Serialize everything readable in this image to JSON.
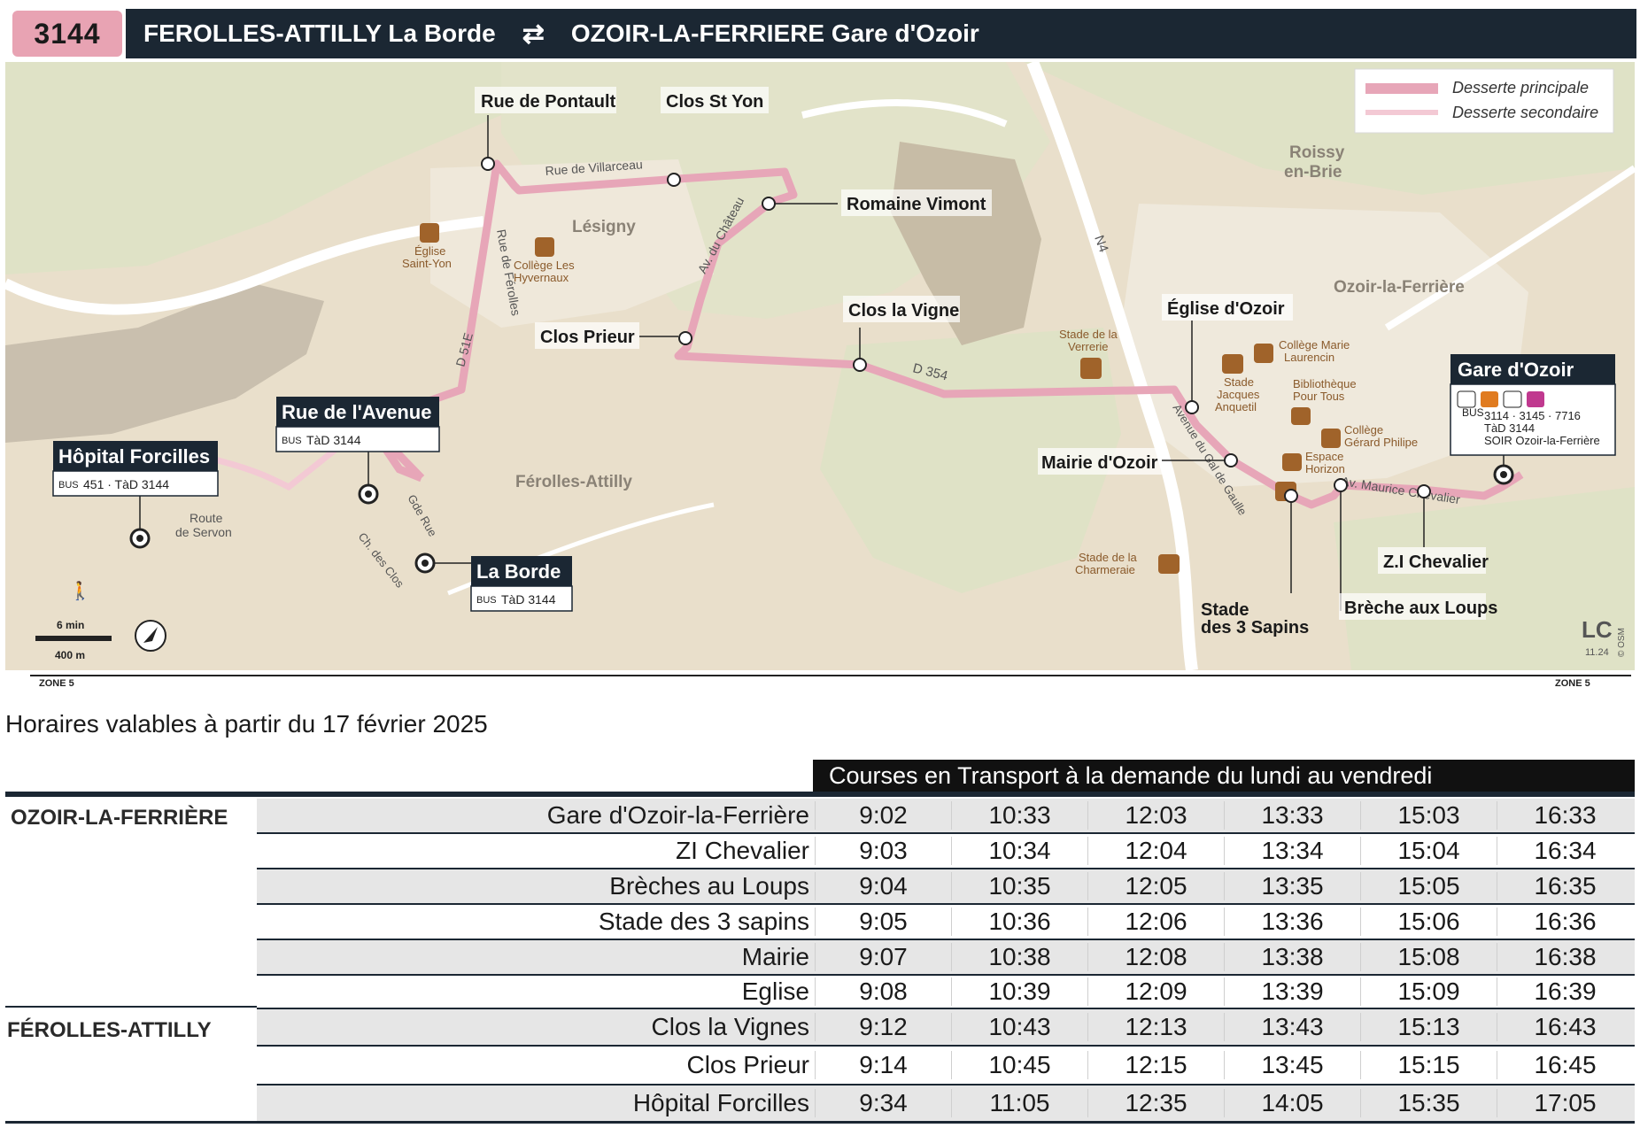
{
  "header": {
    "line_number": "3144",
    "from": "FEROLLES-ATTILLY La Borde",
    "arrows": "⇄",
    "to": "OZOIR-LA-FERRIERE Gare d'Ozoir"
  },
  "legend": {
    "primary": "Desserte principale",
    "secondary": "Desserte secondaire"
  },
  "colors": {
    "route_main": "#e7a6b8",
    "route_secondary": "#f3c9d4",
    "header_bg": "#1b2733",
    "badge": "#e8a3b3",
    "map_bg": "#e9dfcb",
    "green": "#dfe2c6",
    "urban": "#c9bfae",
    "road": "#ffffff"
  },
  "stops": {
    "rue_de_pontault": "Rue de Pontault",
    "clos_st_yon": "Clos St Yon",
    "romaine_vimont": "Romaine Vimont",
    "clos_la_vigne": "Clos la Vigne",
    "clos_prieur": "Clos Prieur",
    "rue_de_lavenue": "Rue de l'Avenue",
    "rue_de_lavenue_lines": "TàD 3144",
    "hopital_forcilles": "Hôpital Forcilles",
    "hopital_forcilles_lines": "451 · TàD 3144",
    "la_borde": "La Borde",
    "la_borde_lines": "TàD 3144",
    "eglise_dozoir": "Église d'Ozoir",
    "mairie_dozoir": "Mairie d'Ozoir",
    "stade_3_sapins_1": "Stade",
    "stade_3_sapins_2": "des 3 Sapins",
    "breche_aux_loups": "Brèche aux Loups",
    "zi_chevalier": "Z.I Chevalier",
    "gare_dozoir": "Gare d'Ozoir",
    "gare_lines_1": "3114 · 3145 · 7716",
    "gare_lines_2": "TàD 3144",
    "gare_lines_3": "SOIR Ozoir-la-Ferrière"
  },
  "places": {
    "lesigny": "Lésigny",
    "ferolles": "Férolles-Attilly",
    "roissy_1": "Roissy",
    "roissy_2": "en-Brie",
    "ozoir": "Ozoir-la-Ferrière",
    "n4": "N4",
    "d354": "D 354",
    "d51e": "D 51E",
    "rue_villarceau": "Rue de Villarceau",
    "av_chateau": "Av. du Château",
    "rue_ferolles": "Rue de Férolles",
    "gde_rue": "Gde Rue",
    "ch_clos": "Ch. des Clos",
    "route_servon_1": "Route",
    "route_servon_2": "de Servon",
    "av_gaulle": "Avenue du Gal de Gaulle",
    "av_chevalier": "Av. Maurice Chevalier",
    "eglise_st_yon_1": "Église",
    "eglise_st_yon_2": "Saint-Yon",
    "college_hyvernaux_1": "Collège Les",
    "college_hyvernaux_2": "Hyvernaux",
    "stade_verrerie_1": "Stade de la",
    "stade_verrerie_2": "Verrerie",
    "college_laurencin_1": "Collège Marie",
    "college_laurencin_2": "Laurencin",
    "stade_anquetil_1": "Stade",
    "stade_anquetil_2": "Jacques",
    "stade_anquetil_3": "Anquetil",
    "bibliotheque_1": "Bibliothèque",
    "bibliotheque_2": "Pour Tous",
    "college_philipe_1": "Collège",
    "college_philipe_2": "Gérard Philipe",
    "espace_horizon_1": "Espace",
    "espace_horizon_2": "Horizon",
    "stade_charmeraie_1": "Stade de la",
    "stade_charmeraie_2": "Charmeraie"
  },
  "scale": {
    "walk": "6 min",
    "distance": "400 m"
  },
  "credits": {
    "logo": "LC",
    "version": "11.24",
    "osm": "© OSM"
  },
  "zones": {
    "left": "ZONE 5",
    "right": "ZONE 5"
  },
  "validity": "Horaires valables à partir du 17 février 2025",
  "timetable": {
    "title": "Courses en Transport à la demande du lundi au vendredi",
    "communes": [
      "OZOIR-LA-FERRIÈRE",
      "FÉROLLES-ATTILLY"
    ],
    "rows": [
      {
        "stop": "Gare d'Ozoir-la-Ferrière",
        "times": [
          "9:02",
          "10:33",
          "12:03",
          "13:33",
          "15:03",
          "16:33"
        ]
      },
      {
        "stop": "ZI Chevalier",
        "times": [
          "9:03",
          "10:34",
          "12:04",
          "13:34",
          "15:04",
          "16:34"
        ]
      },
      {
        "stop": "Brèches au Loups",
        "times": [
          "9:04",
          "10:35",
          "12:05",
          "13:35",
          "15:05",
          "16:35"
        ]
      },
      {
        "stop": "Stade des 3 sapins",
        "times": [
          "9:05",
          "10:36",
          "12:06",
          "13:36",
          "15:06",
          "16:36"
        ]
      },
      {
        "stop": "Mairie",
        "times": [
          "9:07",
          "10:38",
          "12:08",
          "13:38",
          "15:08",
          "16:38"
        ]
      },
      {
        "stop": "Eglise",
        "times": [
          "9:08",
          "10:39",
          "12:09",
          "13:39",
          "15:09",
          "16:39"
        ]
      },
      {
        "stop": "Clos la Vignes",
        "times": [
          "9:12",
          "10:43",
          "12:13",
          "13:43",
          "15:13",
          "16:43"
        ]
      },
      {
        "stop": "Clos Prieur",
        "times": [
          "9:14",
          "10:45",
          "12:15",
          "13:45",
          "15:15",
          "16:45"
        ]
      },
      {
        "stop": "Hôpital Forcilles",
        "times": [
          "9:34",
          "11:05",
          "12:35",
          "14:05",
          "15:35",
          "17:05"
        ]
      }
    ]
  }
}
